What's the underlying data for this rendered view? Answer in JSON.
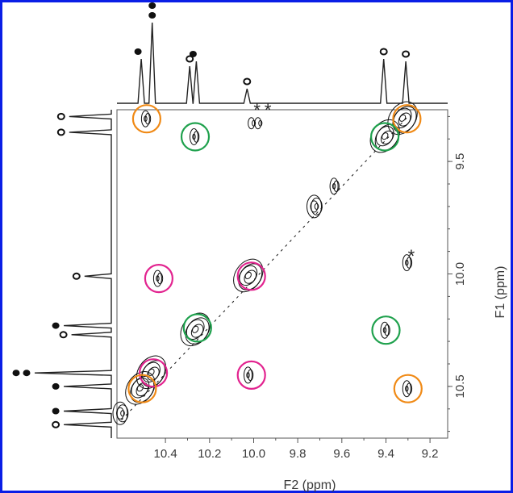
{
  "chart_data": {
    "type": "contour",
    "xlabel": "F2 (ppm)",
    "ylabel": "F1 (ppm)",
    "xlim": [
      10.62,
      9.12
    ],
    "ylim": [
      9.27,
      10.73
    ],
    "x_ticks": [
      "10.4",
      "10.2",
      "10.0",
      "9.8",
      "9.6",
      "9.4",
      "9.2"
    ],
    "y_ticks": [
      "9.5",
      "10.0",
      "10.5"
    ],
    "annotations": [
      "*",
      "*",
      "*"
    ],
    "colors": {
      "frame": "#0a1ee6",
      "orange": "#f08a16",
      "green": "#1fa14d",
      "magenta": "#e2238f",
      "contour": "#111111"
    },
    "top_spectrum_peaks": [
      {
        "x": 10.51,
        "h": 0.55,
        "marker": "filled"
      },
      {
        "x": 10.46,
        "h": 1.0,
        "marker": "filled2"
      },
      {
        "x": 10.29,
        "h": 0.46,
        "marker": "open"
      },
      {
        "x": 10.26,
        "h": 0.52,
        "marker": "filled"
      },
      {
        "x": 10.03,
        "h": 0.18,
        "marker": "open"
      },
      {
        "x": 9.41,
        "h": 0.55,
        "marker": "open"
      },
      {
        "x": 9.31,
        "h": 0.52,
        "marker": "open"
      }
    ],
    "side_spectrum_peaks": [
      {
        "y": 9.3,
        "h": 0.55,
        "marker": "open"
      },
      {
        "y": 9.37,
        "h": 0.55,
        "marker": "open"
      },
      {
        "y": 10.01,
        "h": 0.35,
        "marker": "open"
      },
      {
        "y": 10.23,
        "h": 0.62,
        "marker": "filled"
      },
      {
        "y": 10.27,
        "h": 0.52,
        "marker": "open"
      },
      {
        "y": 10.44,
        "h": 1.0,
        "marker": "filled2"
      },
      {
        "y": 10.5,
        "h": 0.62,
        "marker": "filled"
      },
      {
        "y": 10.61,
        "h": 0.62,
        "marker": "filled"
      },
      {
        "y": 10.67,
        "h": 0.62,
        "marker": "open"
      }
    ],
    "contour_peaks": [
      {
        "x": 10.485,
        "y": 9.31,
        "size": "small"
      },
      {
        "x": 10.265,
        "y": 9.39,
        "size": "small"
      },
      {
        "x": 10.005,
        "y": 9.33,
        "size": "tiny"
      },
      {
        "x": 9.975,
        "y": 9.33,
        "size": "tiny"
      },
      {
        "x": 9.32,
        "y": 9.31,
        "size": "big"
      },
      {
        "x": 9.4,
        "y": 9.39,
        "size": "big"
      },
      {
        "x": 9.63,
        "y": 9.61,
        "size": "small"
      },
      {
        "x": 9.72,
        "y": 9.7,
        "size": "medium"
      },
      {
        "x": 9.3,
        "y": 9.95,
        "size": "small"
      },
      {
        "x": 10.02,
        "y": 10.01,
        "size": "big"
      },
      {
        "x": 10.43,
        "y": 10.02,
        "size": "small"
      },
      {
        "x": 10.26,
        "y": 10.25,
        "size": "big"
      },
      {
        "x": 9.4,
        "y": 10.25,
        "size": "small"
      },
      {
        "x": 10.46,
        "y": 10.44,
        "size": "big"
      },
      {
        "x": 10.51,
        "y": 10.51,
        "size": "big"
      },
      {
        "x": 10.02,
        "y": 10.45,
        "size": "small"
      },
      {
        "x": 9.3,
        "y": 10.51,
        "size": "small"
      },
      {
        "x": 10.6,
        "y": 10.62,
        "size": "medium"
      }
    ],
    "circles": [
      {
        "x": 10.485,
        "y": 9.31,
        "color": "orange"
      },
      {
        "x": 10.265,
        "y": 9.39,
        "color": "green"
      },
      {
        "x": 9.305,
        "y": 9.31,
        "color": "orange"
      },
      {
        "x": 9.405,
        "y": 9.39,
        "color": "green"
      },
      {
        "x": 10.43,
        "y": 10.02,
        "color": "magenta"
      },
      {
        "x": 10.01,
        "y": 10.01,
        "color": "magenta"
      },
      {
        "x": 10.255,
        "y": 10.24,
        "color": "green"
      },
      {
        "x": 9.4,
        "y": 10.25,
        "color": "green"
      },
      {
        "x": 10.455,
        "y": 10.44,
        "color": "magenta"
      },
      {
        "x": 10.01,
        "y": 10.45,
        "color": "magenta"
      },
      {
        "x": 10.505,
        "y": 10.51,
        "color": "orange"
      },
      {
        "x": 9.3,
        "y": 10.51,
        "color": "orange"
      }
    ],
    "star_positions": [
      {
        "x": 9.985,
        "y": 9.27
      },
      {
        "x": 9.935,
        "y": 9.27
      },
      {
        "x": 9.285,
        "y": 9.92
      }
    ]
  }
}
